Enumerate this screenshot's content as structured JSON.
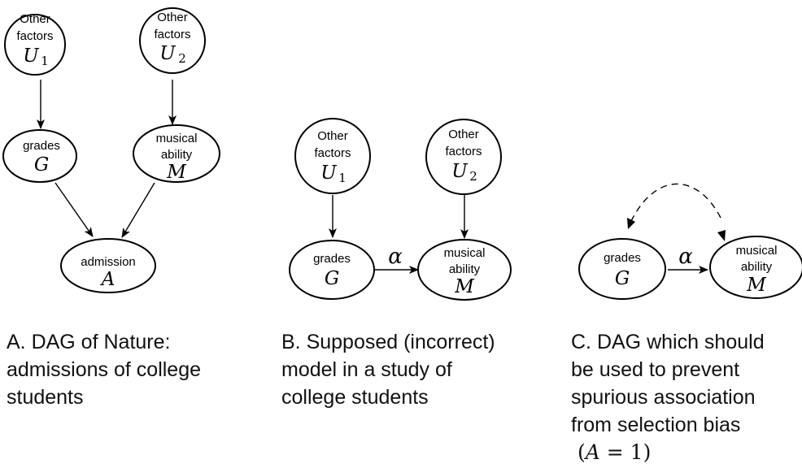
{
  "panel_a": {
    "u1": {
      "line1": "Other",
      "line2": "factors",
      "sym": "U",
      "sub": "1"
    },
    "u2": {
      "line1": "Other",
      "line2": "factors",
      "sym": "U",
      "sub": "2"
    },
    "g": {
      "label": "grades",
      "sym": "G"
    },
    "m": {
      "line1": "musical",
      "line2": "ability",
      "sym": "M"
    },
    "a": {
      "label": "admission",
      "sym": "A"
    },
    "caption": [
      "A. DAG of Nature:",
      "admissions of college",
      "students"
    ]
  },
  "panel_b": {
    "u1": {
      "line1": "Other",
      "line2": "factors",
      "sym": "U",
      "sub": "1"
    },
    "u2": {
      "line1": "Other",
      "line2": "factors",
      "sym": "U",
      "sub": "2"
    },
    "g": {
      "label": "grades",
      "sym": "G"
    },
    "m": {
      "line1": "musical",
      "line2": "ability",
      "sym": "M"
    },
    "edge_label": "α",
    "caption": [
      "B. Supposed (incorrect)",
      "model in a study of",
      "college students"
    ]
  },
  "panel_c": {
    "g": {
      "label": "grades",
      "sym": "G"
    },
    "m": {
      "line1": "musical",
      "line2": "ability",
      "sym": "M"
    },
    "edge_label": "α",
    "caption": [
      "C. DAG which should",
      "be used to prevent",
      "spurious association",
      "from selection bias"
    ],
    "condition": {
      "open": "(",
      "var": "A",
      "rest": " = 1)"
    }
  }
}
